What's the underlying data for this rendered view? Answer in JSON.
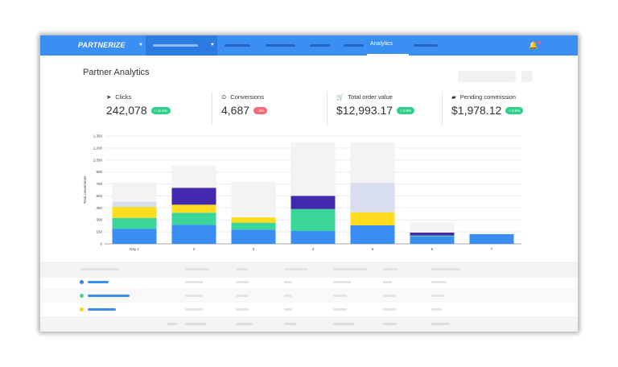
{
  "nav": {
    "brand": "PARTNERIZE",
    "active_tab": "Analytics",
    "bell_icon": "bell-icon",
    "accent": "#3b8ef2"
  },
  "page": {
    "title": "Partner Analytics"
  },
  "kpis": [
    {
      "icon": "cursor-icon",
      "label": "Clicks",
      "value": "242,078",
      "change": "+ 11.6%",
      "trend": "up"
    },
    {
      "icon": "conversion-icon",
      "label": "Conversions",
      "value": "4,687",
      "change": "- 2%",
      "trend": "down"
    },
    {
      "icon": "cart-icon",
      "label": "Total order value",
      "value": "$12,993.17",
      "change": "+ 2.8%",
      "trend": "up"
    },
    {
      "icon": "wallet-icon",
      "label": "Pending commission",
      "value": "$1,978.12",
      "change": "+ 0.6%",
      "trend": "up"
    }
  ],
  "chart_data": {
    "type": "bar",
    "stacked": true,
    "ylabel": "Total conversions",
    "xlabel": "",
    "categories": [
      "Day 1",
      "2",
      "3",
      "4",
      "5",
      "6",
      "7"
    ],
    "yticks": [
      "0",
      "150",
      "300",
      "450",
      "600",
      "750",
      "900",
      "1,050",
      "1,200",
      "1,350"
    ],
    "ylim": [
      0,
      1350
    ],
    "grid": true,
    "series": [
      {
        "color": "#3a8ef3",
        "values": [
          190,
          238,
          178,
          161,
          232,
          94,
          121
        ]
      },
      {
        "color": "#3bd699",
        "values": [
          135,
          152,
          87,
          275,
          0,
          10,
          0
        ]
      },
      {
        "color": "#ffdc1e",
        "values": [
          138,
          100,
          67,
          0,
          164,
          0,
          0
        ]
      },
      {
        "color": "#4229ad",
        "values": [
          0,
          212,
          0,
          165,
          0,
          37,
          0
        ]
      },
      {
        "color": "#d9deef",
        "values": [
          64,
          0,
          0,
          0,
          369,
          0,
          0
        ]
      },
      {
        "color": "#f3f3f3",
        "values": [
          241,
          278,
          443,
          671,
          507,
          124,
          43
        ]
      }
    ]
  },
  "table": {
    "row_colors": [
      "#3a7ef0",
      "#3bd699",
      "#ffd21e"
    ]
  }
}
